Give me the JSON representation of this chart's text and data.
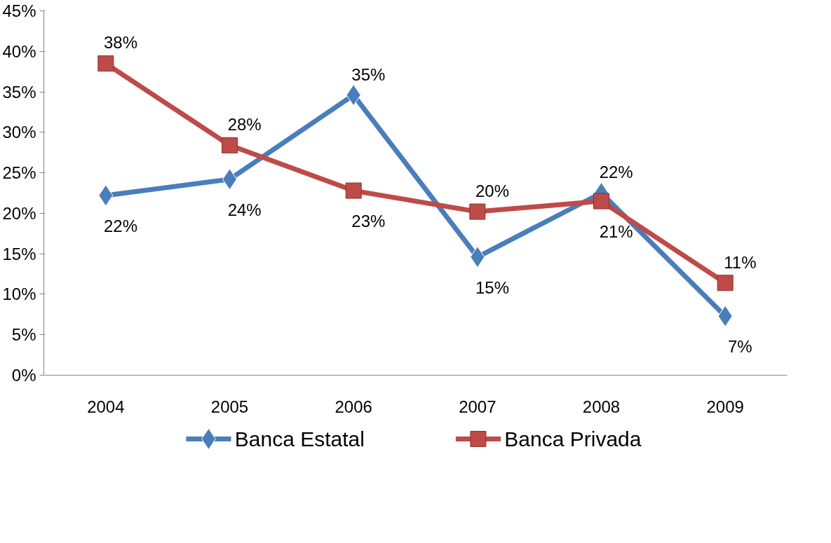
{
  "chart_data": {
    "type": "line",
    "categories": [
      "2004",
      "2005",
      "2006",
      "2007",
      "2008",
      "2009"
    ],
    "series": [
      {
        "name": "Banca Estatal",
        "color": "#4a7ebb",
        "marker": "diamond",
        "values": [
          22.2,
          24.2,
          34.6,
          14.6,
          22.5,
          7.3
        ],
        "value_labels": [
          "22%",
          "24%",
          "35%",
          "15%",
          "22%",
          "7%"
        ]
      },
      {
        "name": "Banca Privada",
        "color": "#be4b48",
        "marker": "square",
        "values": [
          38.5,
          28.4,
          22.8,
          20.2,
          21.5,
          11.4
        ],
        "value_labels": [
          "38%",
          "28%",
          "23%",
          "20%",
          "21%",
          "11%"
        ]
      }
    ],
    "ylim": [
      0,
      45
    ],
    "yticks": [
      {
        "value": 0,
        "label": "0%"
      },
      {
        "value": 5,
        "label": "5%"
      },
      {
        "value": 10,
        "label": "10%"
      },
      {
        "value": 15,
        "label": "15%"
      },
      {
        "value": 20,
        "label": "20%"
      },
      {
        "value": 25,
        "label": "25%"
      },
      {
        "value": 30,
        "label": "30%"
      },
      {
        "value": 35,
        "label": "35%"
      },
      {
        "value": 40,
        "label": "40%"
      },
      {
        "value": 45,
        "label": "45%"
      }
    ],
    "grid": false,
    "legend": "bottom",
    "line_style": "solid"
  }
}
